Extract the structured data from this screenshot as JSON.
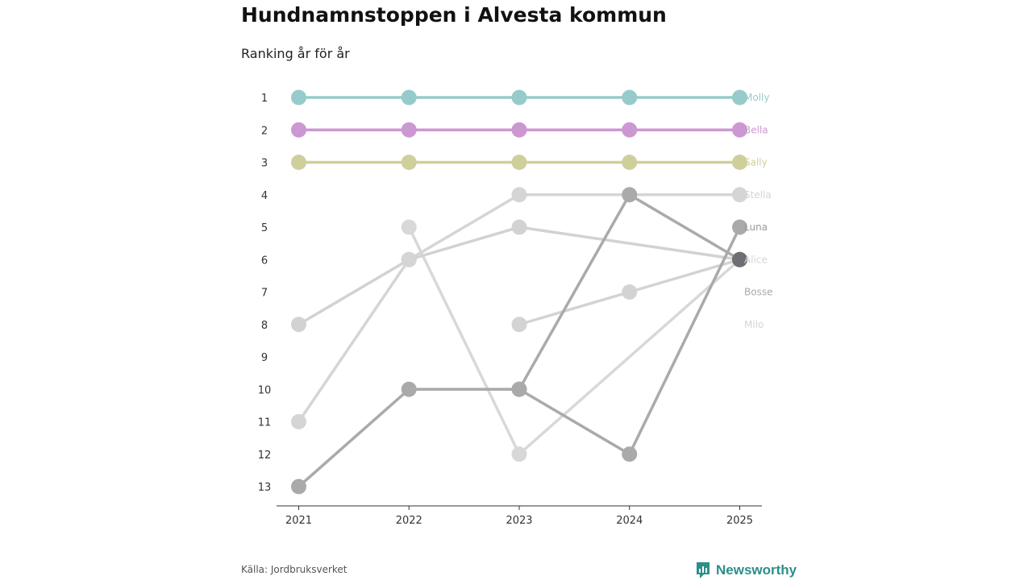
{
  "chart_data": {
    "type": "line",
    "title": "Hundnamnstoppen i Alvesta kommun",
    "subtitle": "Ranking år för år",
    "xlabel": "",
    "ylabel": "",
    "x": [
      "2021",
      "2022",
      "2023",
      "2024",
      "2025"
    ],
    "ylim": [
      1,
      13
    ],
    "y_inverted": true,
    "y_ticks": [
      "1",
      "2",
      "3",
      "4",
      "5",
      "6",
      "7",
      "8",
      "9",
      "10",
      "11",
      "12",
      "13"
    ],
    "series": [
      {
        "name": "Milo",
        "color": "#d8d8d8",
        "values": [
          null,
          5,
          12,
          null,
          6
        ]
      },
      {
        "name": "Alice",
        "color": "#d2d2d2",
        "values": [
          8,
          6,
          5,
          null,
          6
        ]
      },
      {
        "name": "Stella",
        "color": "#d5d5d5",
        "values": [
          11,
          6,
          4,
          4,
          4
        ]
      },
      {
        "name": "Bosse",
        "color": "#d3d3d3",
        "values": [
          null,
          null,
          8,
          7,
          6
        ]
      },
      {
        "name": "Luna",
        "color": "#aaaaaa",
        "values": [
          null,
          null,
          10,
          4,
          6
        ]
      },
      {
        "name": "Sally",
        "color": "#cfcf9c",
        "values": [
          3,
          3,
          3,
          3,
          3
        ]
      },
      {
        "name": "Bella",
        "color": "#cc98d1",
        "values": [
          2,
          2,
          2,
          2,
          2
        ]
      },
      {
        "name": "Molly",
        "color": "#97cbcb",
        "values": [
          1,
          1,
          1,
          1,
          1
        ]
      },
      {
        "name": "Luna",
        "color": "#aaaaaa",
        "values": [
          13,
          10,
          10,
          12,
          5
        ]
      },
      {
        "name": "Alice",
        "color": "#6e6e74",
        "values": [
          null,
          null,
          null,
          null,
          6
        ]
      }
    ],
    "labels": [
      {
        "name": "Molly",
        "rank": 1,
        "color": "#97cbcb"
      },
      {
        "name": "Bella",
        "rank": 2,
        "color": "#cc98d1"
      },
      {
        "name": "Sally",
        "rank": 3,
        "color": "#cfcf9c"
      },
      {
        "name": "Stella",
        "rank": 4,
        "color": "#d5d5d5"
      },
      {
        "name": "Luna",
        "rank": 5,
        "color": "#999999"
      },
      {
        "name": "Alice",
        "rank": 6,
        "color": "#d5d5d5"
      },
      {
        "name": "Bosse",
        "rank": 7,
        "color": "#aaaaaa"
      },
      {
        "name": "Milo",
        "rank": 8,
        "color": "#d5d5d5"
      }
    ]
  },
  "footer": {
    "source": "Källa: Jordbruksverket",
    "brand": "Newsworthy",
    "brand_color": "#2b8f8a"
  }
}
